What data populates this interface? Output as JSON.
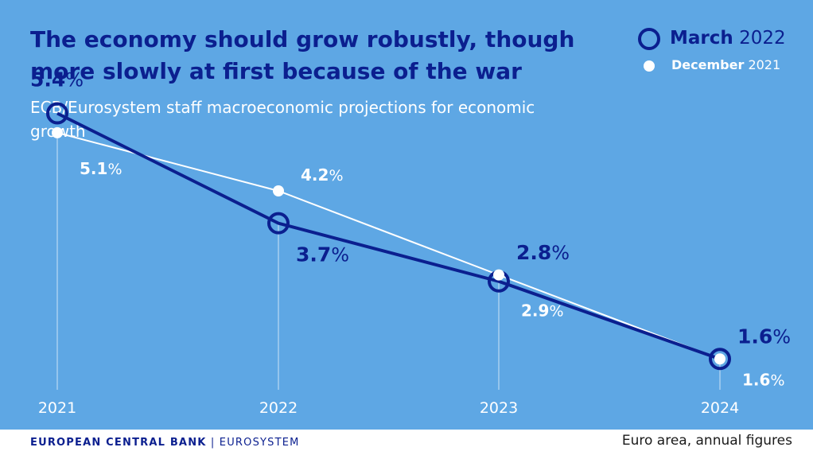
{
  "title": "The economy should grow robustly, though more slowly at first because of the war",
  "subtitle": "ECB/Eurosystem staff macroeconomic projections for economic growth",
  "legend": {
    "series_1_month": "March",
    "series_1_year": "2022",
    "series_2_month": "December",
    "series_2_year": "2021"
  },
  "footer": {
    "brand_bold": "EUROPEAN CENTRAL BANK",
    "brand_rest": " | EUROSYSTEM",
    "note": "Euro area, annual figures"
  },
  "colors": {
    "background": "#5ea7e4",
    "march_2022": "#0b1f8f",
    "december_2021": "#ffffff"
  },
  "chart_data": {
    "type": "line",
    "categories": [
      "2021",
      "2022",
      "2023",
      "2024"
    ],
    "ylim": [
      1.0,
      5.8
    ],
    "unit": "%",
    "grid": false,
    "legend_position": "top-right",
    "series": [
      {
        "name": "March 2022",
        "values": [
          5.4,
          3.7,
          2.8,
          1.6
        ],
        "labels": [
          "5.4%",
          "3.7%",
          "2.8%",
          "1.6%"
        ],
        "color": "#0b1f8f",
        "marker": "ring"
      },
      {
        "name": "December 2021",
        "values": [
          5.1,
          4.2,
          2.9,
          1.6
        ],
        "labels": [
          "5.1%",
          "4.2%",
          "2.9%",
          "1.6%"
        ],
        "color": "#ffffff",
        "marker": "dot"
      }
    ]
  }
}
